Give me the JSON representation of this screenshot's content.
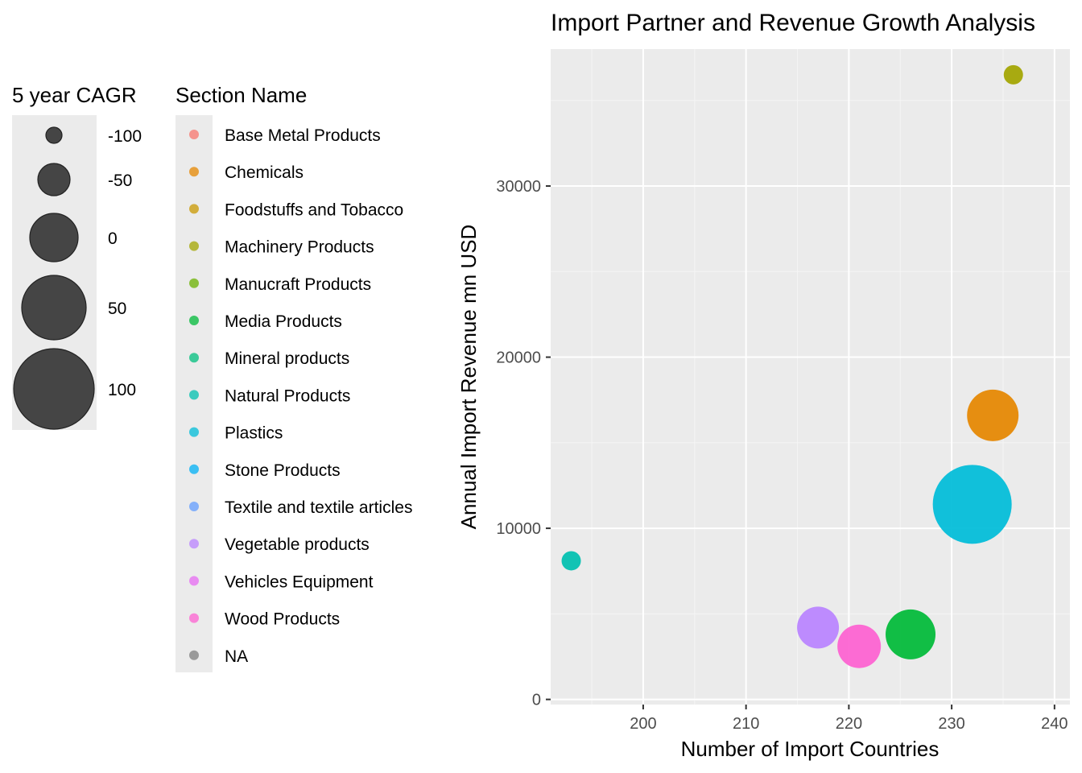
{
  "chart_data": {
    "type": "scatter",
    "title": "Import Partner and Revenue Growth Analysis",
    "xlabel": "Number of Import Countries",
    "ylabel": "Annual Import Revenue mn USD",
    "xlim": [
      191,
      241.5
    ],
    "ylim": [
      -300,
      38000
    ],
    "x_ticks": [
      200,
      210,
      220,
      230,
      240
    ],
    "y_ticks": [
      0,
      10000,
      20000,
      30000
    ],
    "grid": true,
    "legend_position": "left",
    "size_legend": {
      "title": "5 year CAGR",
      "values": [
        -100,
        -50,
        0,
        50,
        100
      ],
      "labels": [
        "-100",
        "-50",
        "0",
        "50",
        "100"
      ],
      "color": "#333333"
    },
    "color_legend": {
      "title": "Section Name",
      "entries": [
        {
          "name": "Base Metal Products",
          "color": "#F8766D"
        },
        {
          "name": "Chemicals",
          "color": "#E58700"
        },
        {
          "name": "Foodstuffs and Tobacco",
          "color": "#C99800"
        },
        {
          "name": "Machinery Products",
          "color": "#A3A500"
        },
        {
          "name": "Manucraft Products",
          "color": "#6BB100"
        },
        {
          "name": "Media Products",
          "color": "#00BA38"
        },
        {
          "name": "Mineral products",
          "color": "#00BF7D"
        },
        {
          "name": "Natural Products",
          "color": "#00C0AF"
        },
        {
          "name": "Plastics",
          "color": "#00BCD8"
        },
        {
          "name": "Stone Products",
          "color": "#00B0F6"
        },
        {
          "name": "Textile and textile articles",
          "color": "#619CFF"
        },
        {
          "name": "Vegetable products",
          "color": "#B983FF"
        },
        {
          "name": "Vehicles Equipment",
          "color": "#E76BF3"
        },
        {
          "name": "Wood Products",
          "color": "#FD61D1"
        },
        {
          "name": "NA",
          "color": "#7F7F7F"
        }
      ]
    },
    "points": [
      {
        "section": "Natural Products",
        "x": 193,
        "y": 8100,
        "cagr": -100,
        "color": "#00C0AF"
      },
      {
        "section": "Machinery Products",
        "x": 236,
        "y": 36500,
        "cagr": -100,
        "color": "#A3A500"
      },
      {
        "section": "Vegetable products",
        "x": 217,
        "y": 4200,
        "cagr": -30,
        "color": "#B983FF"
      },
      {
        "section": "Wood Products",
        "x": 221,
        "y": 3100,
        "cagr": -25,
        "color": "#FD61D1"
      },
      {
        "section": "Media Products",
        "x": 226,
        "y": 3800,
        "cagr": -5,
        "color": "#00BA38"
      },
      {
        "section": "Chemicals",
        "x": 234,
        "y": 16600,
        "cagr": 0,
        "color": "#E58700"
      },
      {
        "section": "Plastics",
        "x": 232,
        "y": 11400,
        "cagr": 85,
        "color": "#00BCD8"
      }
    ]
  }
}
